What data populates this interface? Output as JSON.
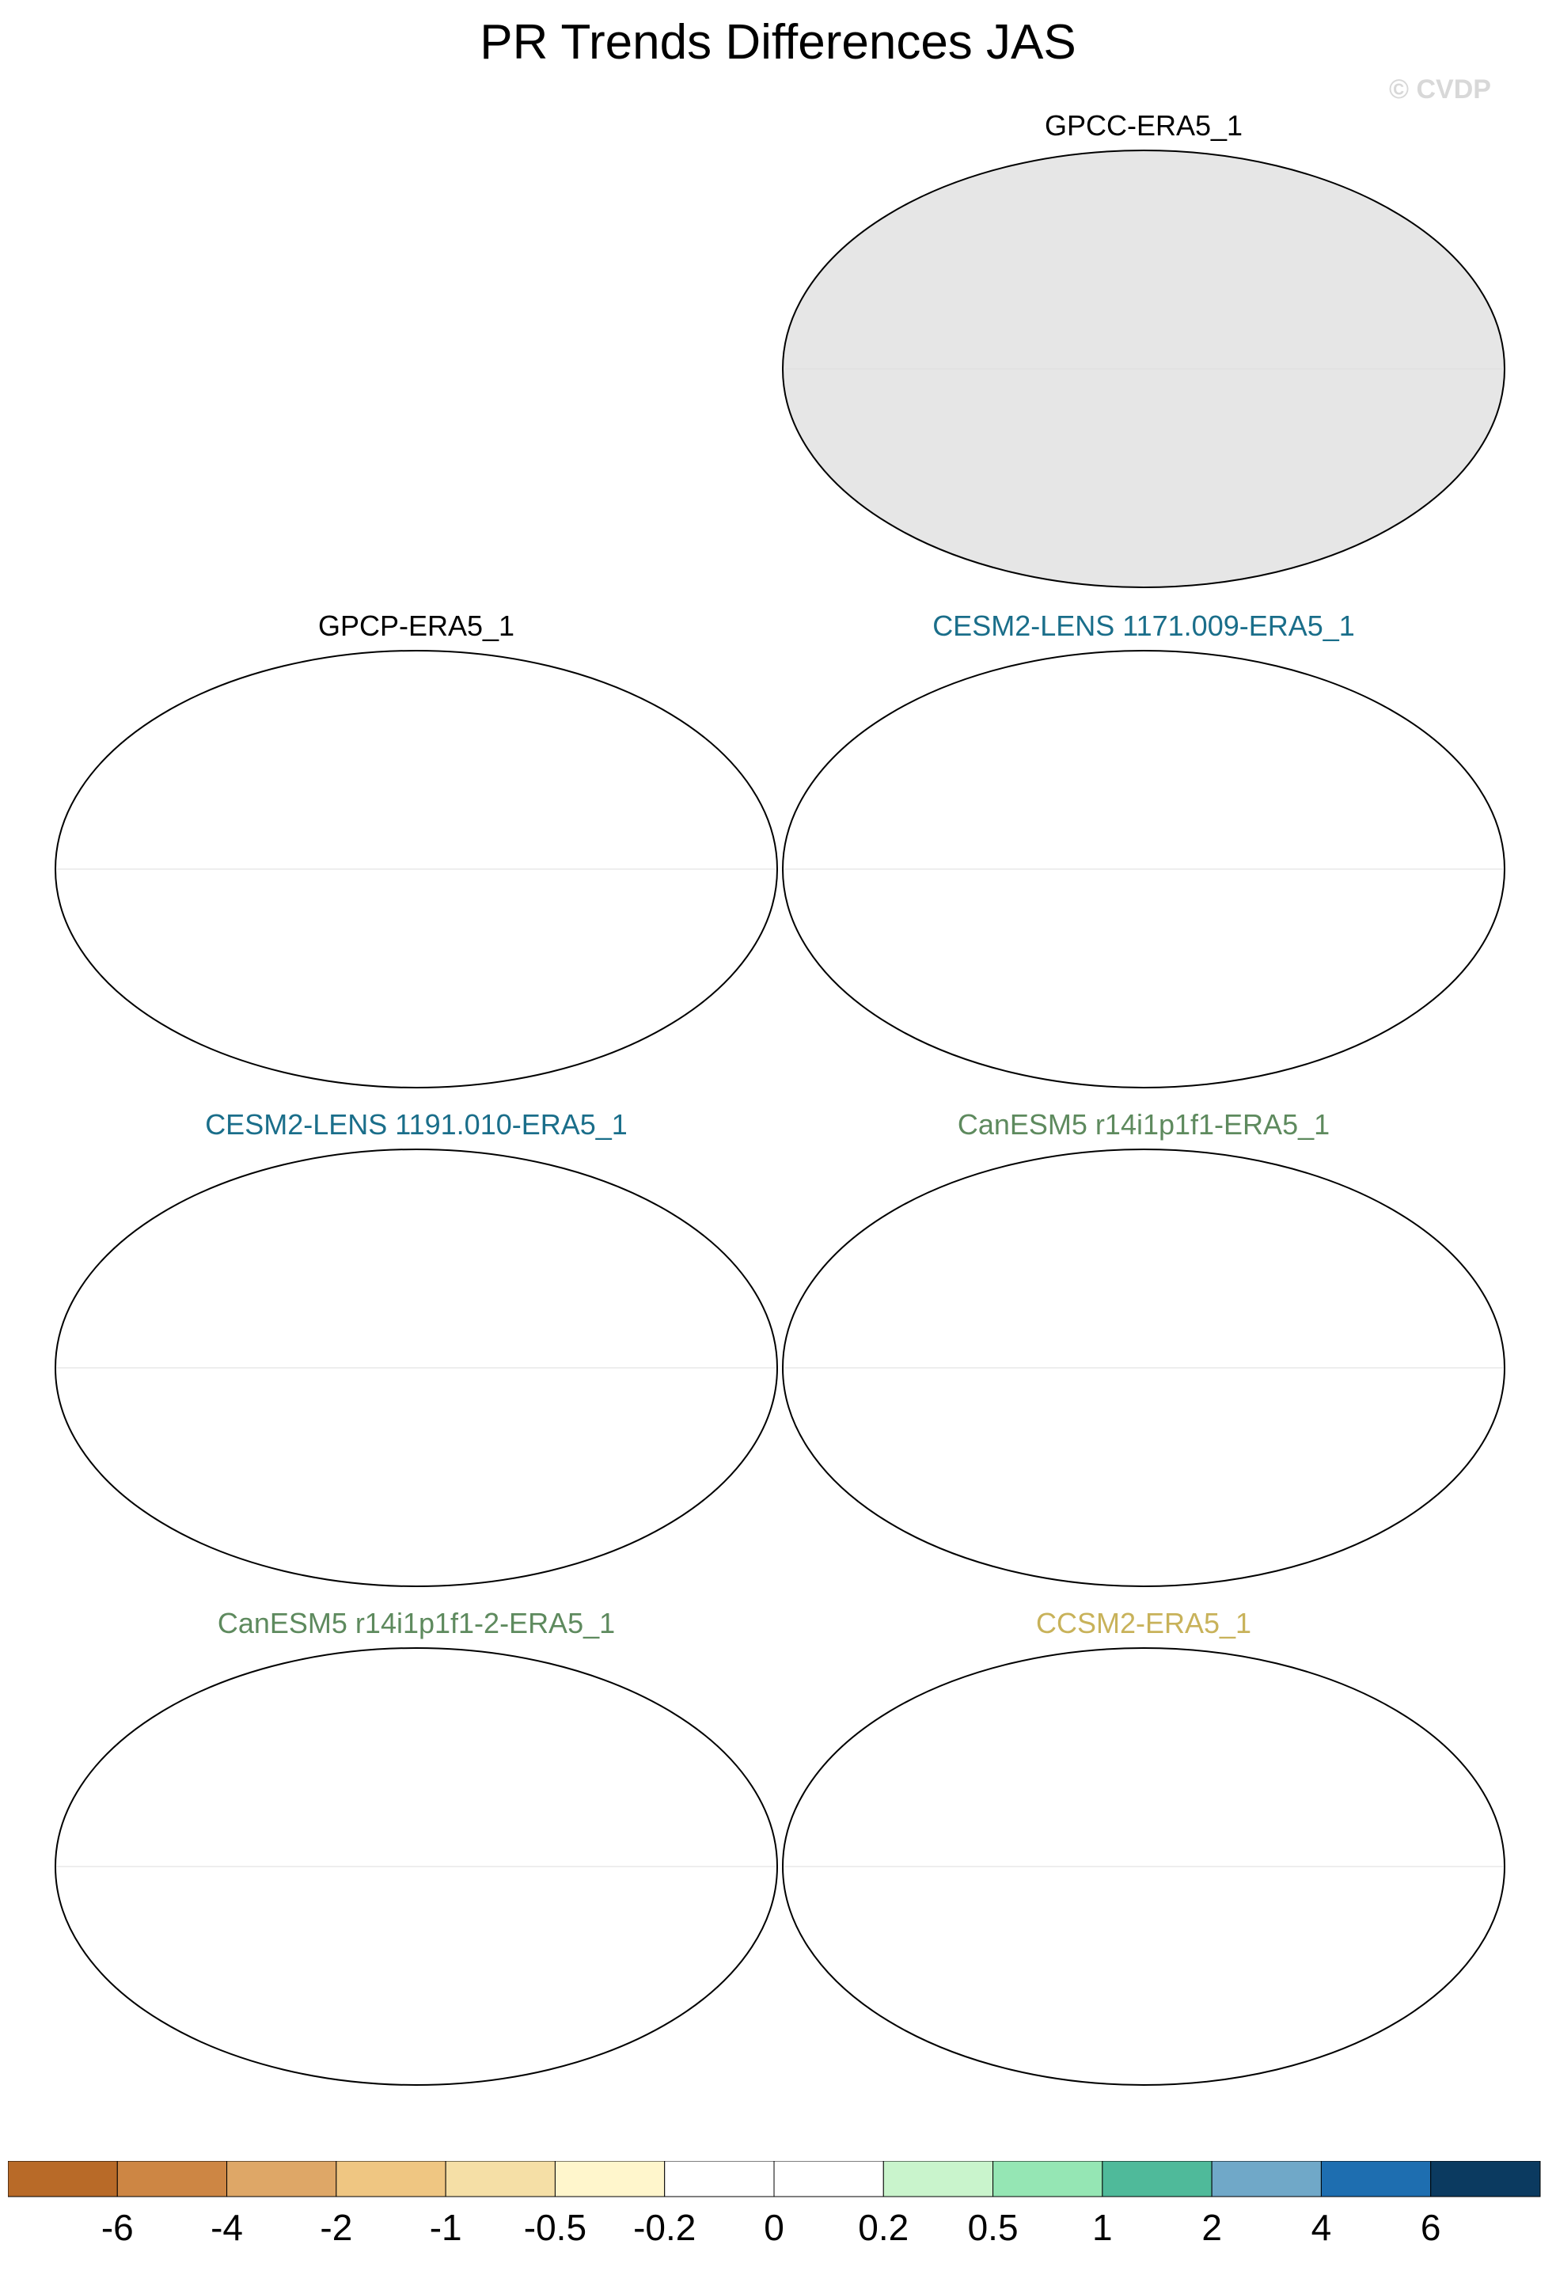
{
  "title": "PR Trends Differences JAS",
  "watermark": "© CVDP",
  "colors": {
    "ocean_fill": "#ffffff",
    "mask_fill": "#e6e6e6",
    "outline": "#000000"
  },
  "panels": [
    {
      "title": "GPCC-ERA5_1",
      "title_color": "#000000",
      "masked_ocean": true
    },
    {
      "title": "GPCP-ERA5_1",
      "title_color": "#000000",
      "masked_ocean": false
    },
    {
      "title": "CESM2-LENS 1171.009-ERA5_1",
      "title_color": "#1a6e8a",
      "masked_ocean": false
    },
    {
      "title": "CESM2-LENS 1191.010-ERA5_1",
      "title_color": "#1a6e8a",
      "masked_ocean": false
    },
    {
      "title": "CanESM5 r14i1p1f1-ERA5_1",
      "title_color": "#5e8a5e",
      "masked_ocean": false
    },
    {
      "title": "CanESM5 r14i1p1f1-2-ERA5_1",
      "title_color": "#5e8a5e",
      "masked_ocean": false
    },
    {
      "title": "CCSM2-ERA5_1",
      "title_color": "#c8b25a",
      "masked_ocean": false
    }
  ],
  "colorbar": {
    "colors": [
      "#b86a28",
      "#cd8644",
      "#dea767",
      "#efc682",
      "#f5dfa6",
      "#fff6cc",
      "#ffffff",
      "#ffffff",
      "#c9f4cc",
      "#95e6b4",
      "#4fba9a",
      "#70a8c8",
      "#1e6eb0",
      "#0b3a60"
    ],
    "labels": [
      "-6",
      "-4",
      "-2",
      "-1",
      "-0.5",
      "-0.2",
      "0",
      "0.2",
      "0.5",
      "1",
      "2",
      "4",
      "6"
    ]
  }
}
